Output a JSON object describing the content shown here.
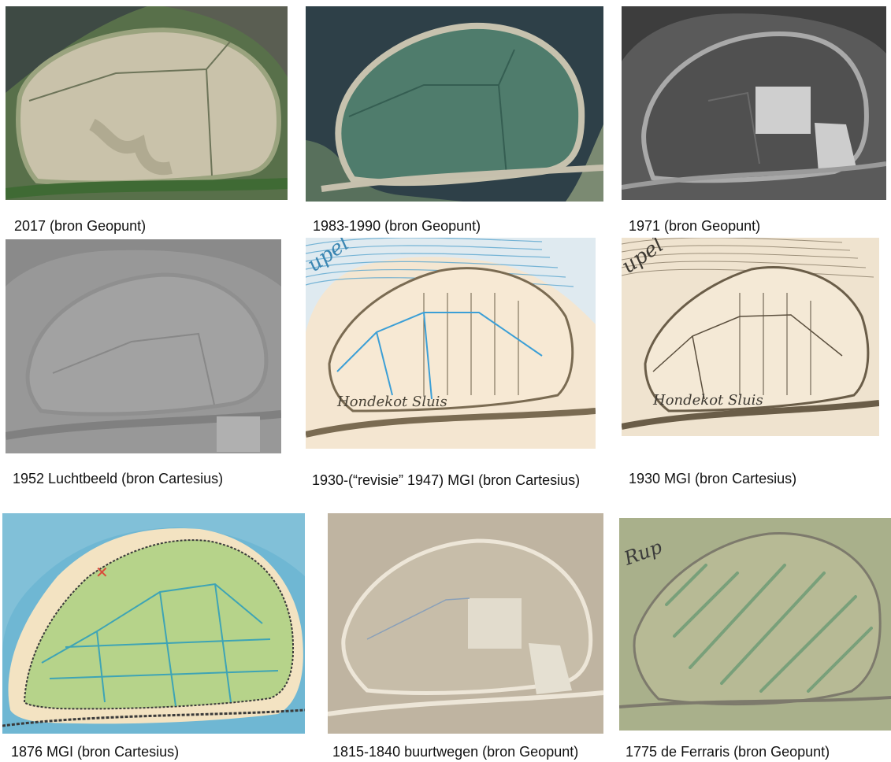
{
  "captions": {
    "c2017": "2017 (bron Geopunt)",
    "c1983": "1983-1990 (bron Geopunt)",
    "c1971": "1971 (bron Geopunt)",
    "c1952": "1952 Luchtbeeld (bron Cartesius)",
    "c1930r": "1930-(“revisie” 1947) MGI (bron Cartesius)",
    "c1930": "1930 MGI (bron Cartesius)",
    "c1876": "1876 MGI (bron Cartesius)",
    "c1815": "1815-1840 buurtwegen (bron Geopunt)",
    "c1775": "1775 de Ferraris (bron Geopunt)"
  },
  "map_labels": {
    "rupel_1930r": "upel",
    "hondekot_1930r": "Hondekot Sluis",
    "rupel_1930": "upel",
    "hondekot_1930": "Hondekot Sluis",
    "rupel_1775": "Rup"
  },
  "icons": {
    "aerial": "aerial-photo",
    "map": "historic-map"
  }
}
